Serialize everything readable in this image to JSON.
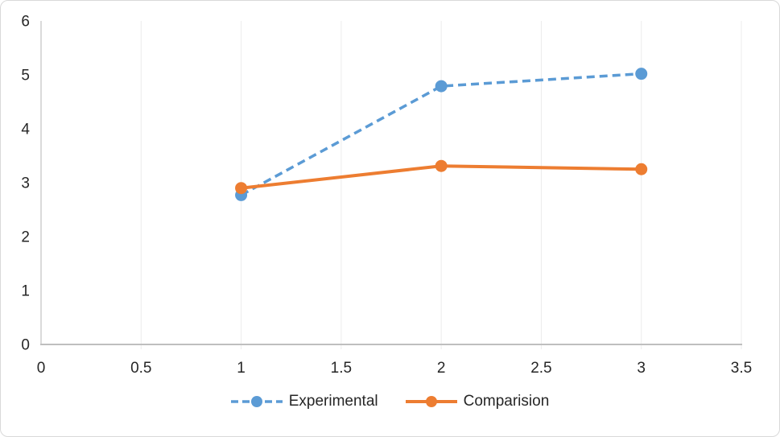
{
  "chart_data": {
    "type": "line",
    "title": "",
    "xlabel": "",
    "ylabel": "",
    "x": [
      1,
      2,
      3
    ],
    "series": [
      {
        "name": "Experimental",
        "values": [
          2.77,
          4.79,
          5.02
        ],
        "color": "#5B9BD5",
        "line_style": "dashed",
        "marker": "circle"
      },
      {
        "name": "Comparision",
        "values": [
          2.9,
          3.31,
          3.25
        ],
        "color": "#ED7D31",
        "line_style": "solid",
        "marker": "circle"
      }
    ],
    "xlim": [
      0,
      3.5
    ],
    "ylim": [
      0,
      6
    ],
    "x_ticks": [
      0,
      0.5,
      1,
      1.5,
      2,
      2.5,
      3,
      3.5
    ],
    "x_tick_labels": [
      "0",
      "0.5",
      "1",
      "1.5",
      "2",
      "2.5",
      "3",
      "3.5"
    ],
    "y_ticks": [
      0,
      1,
      2,
      3,
      4,
      5,
      6
    ],
    "y_tick_labels": [
      "0",
      "1",
      "2",
      "3",
      "4",
      "5",
      "6"
    ],
    "grid": "vertical-only",
    "legend_position": "bottom-center"
  },
  "colors": {
    "experimental": "#5B9BD5",
    "comparision": "#ED7D31",
    "gridline": "#ECECEC",
    "axis_line": "#BFBFBF",
    "y_axis_line": "#C6C6C6",
    "text": "#262626",
    "chart_border": "#D9D9D9",
    "background": "#FFFFFF"
  }
}
